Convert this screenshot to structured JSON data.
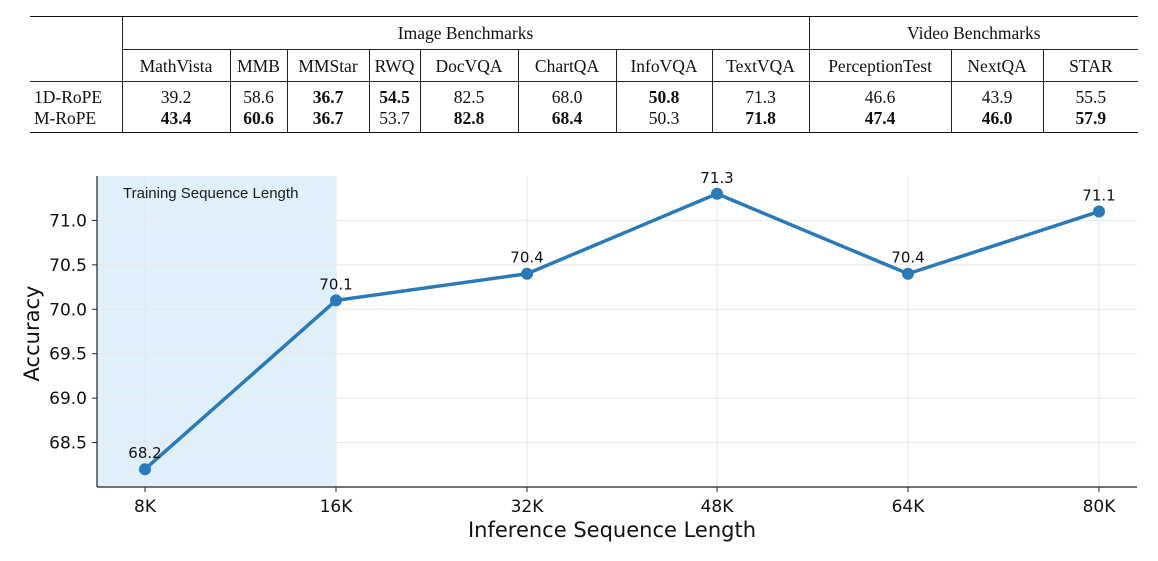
{
  "table": {
    "groups": [
      {
        "label": "Image Benchmarks",
        "span": 8
      },
      {
        "label": "Video Benchmarks",
        "span": 3
      }
    ],
    "columns": [
      "MathVista",
      "MMB",
      "MMStar",
      "RWQ",
      "DocVQA",
      "ChartQA",
      "InfoVQA",
      "TextVQA",
      "PerceptionTest",
      "NextQA",
      "STAR"
    ],
    "rows": [
      {
        "label": "1D-RoPE",
        "values": [
          "39.2",
          "58.6",
          "36.7",
          "54.5",
          "82.5",
          "68.0",
          "50.8",
          "71.3",
          "46.6",
          "43.9",
          "55.5"
        ],
        "bold": [
          false,
          false,
          true,
          true,
          false,
          false,
          true,
          false,
          false,
          false,
          false
        ]
      },
      {
        "label": "M-RoPE",
        "values": [
          "43.4",
          "60.6",
          "36.7",
          "53.7",
          "82.8",
          "68.4",
          "50.3",
          "71.8",
          "47.4",
          "46.0",
          "57.9"
        ],
        "bold": [
          true,
          true,
          true,
          false,
          true,
          true,
          false,
          true,
          true,
          true,
          true
        ]
      }
    ]
  },
  "chart_data": {
    "type": "line",
    "categories": [
      "8K",
      "16K",
      "32K",
      "48K",
      "64K",
      "80K"
    ],
    "values": [
      68.2,
      70.1,
      70.4,
      71.3,
      70.4,
      71.1
    ],
    "data_labels": [
      "68.2",
      "70.1",
      "70.4",
      "71.3",
      "70.4",
      "71.1"
    ],
    "xlabel": "Inference Sequence Length",
    "ylabel": "Accuracy",
    "yticks": [
      "68.5",
      "69.0",
      "69.5",
      "70.0",
      "70.5",
      "71.0"
    ],
    "ylim": [
      68.0,
      71.5
    ],
    "grid": true,
    "line_color": "#2a7ab9",
    "shaded_region": {
      "label": "Training Sequence Length",
      "from": "8K",
      "to": "16K",
      "color": "#dff0fb"
    }
  }
}
